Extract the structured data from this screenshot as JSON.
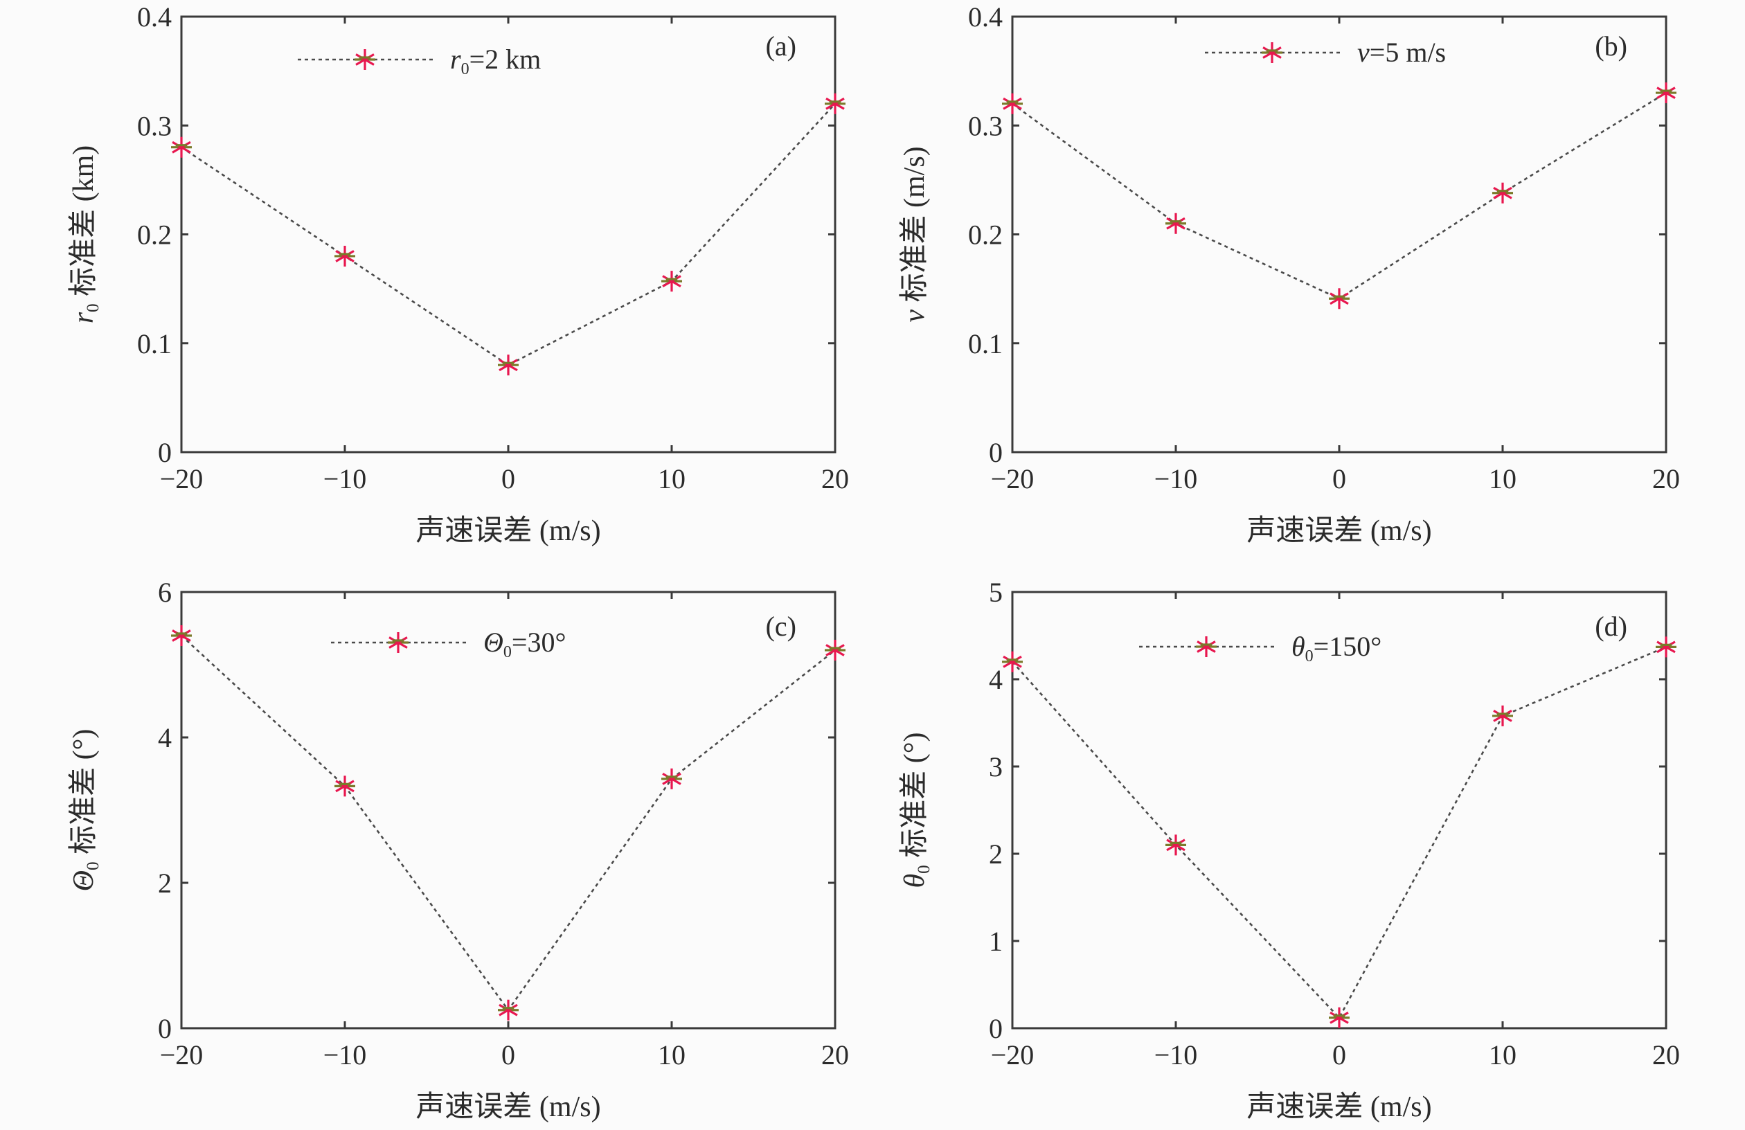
{
  "chart_data": [
    {
      "type": "line",
      "panel_tag": "(a)",
      "x": [
        -20,
        -10,
        0,
        10,
        20
      ],
      "values": [
        0.28,
        0.18,
        0.08,
        0.157,
        0.32
      ],
      "series_name": "r0=2 km",
      "legend": {
        "symbol": "r",
        "sub": "0",
        "rest": "=2 km"
      },
      "xlabel": "声速误差 (m/s)",
      "ylabel": {
        "symbol": "r",
        "sub": "0",
        "rest": " 标准差 (km)"
      },
      "xlim": [
        -20,
        20
      ],
      "ylim": [
        0,
        0.4
      ],
      "xticks": [
        -20,
        -10,
        0,
        10,
        20
      ],
      "yticks": [
        0,
        0.1,
        0.2,
        0.3,
        0.4
      ],
      "xtick_labels": [
        "−20",
        "−10",
        "0",
        "10",
        "20"
      ],
      "ytick_labels": [
        "0",
        "0.1",
        "0.2",
        "0.3",
        "0.4"
      ],
      "grid": false,
      "legend_position": "top"
    },
    {
      "type": "line",
      "panel_tag": "(b)",
      "x": [
        -20,
        -10,
        0,
        10,
        20
      ],
      "values": [
        0.32,
        0.21,
        0.141,
        0.238,
        0.33
      ],
      "series_name": "v=5 m/s",
      "legend": {
        "symbol": "v",
        "sub": "",
        "rest": "=5 m/s"
      },
      "xlabel": "声速误差 (m/s)",
      "ylabel": {
        "symbol": "v",
        "sub": "",
        "rest": " 标准差 (m/s)"
      },
      "xlim": [
        -20,
        20
      ],
      "ylim": [
        0,
        0.4
      ],
      "xticks": [
        -20,
        -10,
        0,
        10,
        20
      ],
      "yticks": [
        0,
        0.1,
        0.2,
        0.3,
        0.4
      ],
      "xtick_labels": [
        "−20",
        "−10",
        "0",
        "10",
        "20"
      ],
      "ytick_labels": [
        "0",
        "0.1",
        "0.2",
        "0.3",
        "0.4"
      ],
      "grid": false,
      "legend_position": "top"
    },
    {
      "type": "line",
      "panel_tag": "(c)",
      "x": [
        -20,
        -10,
        0,
        10,
        20
      ],
      "values": [
        5.4,
        3.33,
        0.25,
        3.43,
        5.2
      ],
      "series_name": "Θ0=30°",
      "legend": {
        "symbol": "Θ",
        "sub": "0",
        "rest": "=30°"
      },
      "xlabel": "声速误差 (m/s)",
      "ylabel": {
        "symbol": "Θ",
        "sub": "0",
        "rest": " 标准差 (°)"
      },
      "xlim": [
        -20,
        20
      ],
      "ylim": [
        0,
        6
      ],
      "xticks": [
        -20,
        -10,
        0,
        10,
        20
      ],
      "yticks": [
        0,
        2,
        4,
        6
      ],
      "xtick_labels": [
        "−20",
        "−10",
        "0",
        "10",
        "20"
      ],
      "ytick_labels": [
        "0",
        "2",
        "4",
        "6"
      ],
      "grid": false,
      "legend_position": "top"
    },
    {
      "type": "line",
      "panel_tag": "(d)",
      "x": [
        -20,
        -10,
        0,
        10,
        20
      ],
      "values": [
        4.2,
        2.1,
        0.12,
        3.58,
        4.37
      ],
      "series_name": "θ0=150°",
      "legend": {
        "symbol": "θ",
        "sub": "0",
        "rest": "=150°"
      },
      "xlabel": "声速误差 (m/s)",
      "ylabel": {
        "symbol": "θ",
        "sub": "0",
        "rest": " 标准差 (°)"
      },
      "xlim": [
        -20,
        20
      ],
      "ylim": [
        0,
        5
      ],
      "xticks": [
        -20,
        -10,
        0,
        10,
        20
      ],
      "yticks": [
        0,
        1,
        2,
        3,
        4,
        5
      ],
      "xtick_labels": [
        "−20",
        "−10",
        "0",
        "10",
        "20"
      ],
      "ytick_labels": [
        "0",
        "1",
        "2",
        "3",
        "4",
        "5"
      ],
      "grid": false,
      "legend_position": "top"
    }
  ],
  "colors": {
    "axis": "#3a3a3a",
    "line": "#4a4a4a",
    "marker_primary": "#e8174f",
    "marker_secondary": "#7a7a2a",
    "background": "#fbfbfb"
  }
}
